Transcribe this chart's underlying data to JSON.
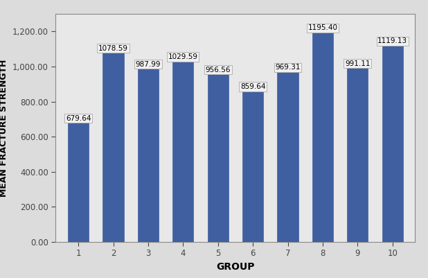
{
  "categories": [
    1,
    2,
    3,
    4,
    5,
    6,
    7,
    8,
    9,
    10
  ],
  "values": [
    679.64,
    1078.59,
    987.99,
    1029.59,
    956.56,
    859.64,
    969.31,
    1195.4,
    991.11,
    1119.13
  ],
  "bar_color": "#3F5FA0",
  "bar_edge_color": "#3F5FA0",
  "label_box_facecolor": "#F0F0F0",
  "label_box_edgecolor": "#AAAAAA",
  "xlabel": "GROUP",
  "ylabel": "MEAN FRACTURE STRENGTH",
  "ylim": [
    0,
    1300
  ],
  "yticks": [
    0,
    200,
    400,
    600,
    800,
    1000,
    1200
  ],
  "ytick_labels": [
    "0.00",
    "200.00",
    "400.00",
    "600.00",
    "800.00",
    "1,000.00",
    "1,200.00"
  ],
  "figure_facecolor": "#DCDCDC",
  "plot_bg_color": "#E8E8E8",
  "xlabel_fontsize": 10,
  "ylabel_fontsize": 9,
  "tick_fontsize": 8.5,
  "annotation_fontsize": 7.5,
  "bar_width": 0.6
}
